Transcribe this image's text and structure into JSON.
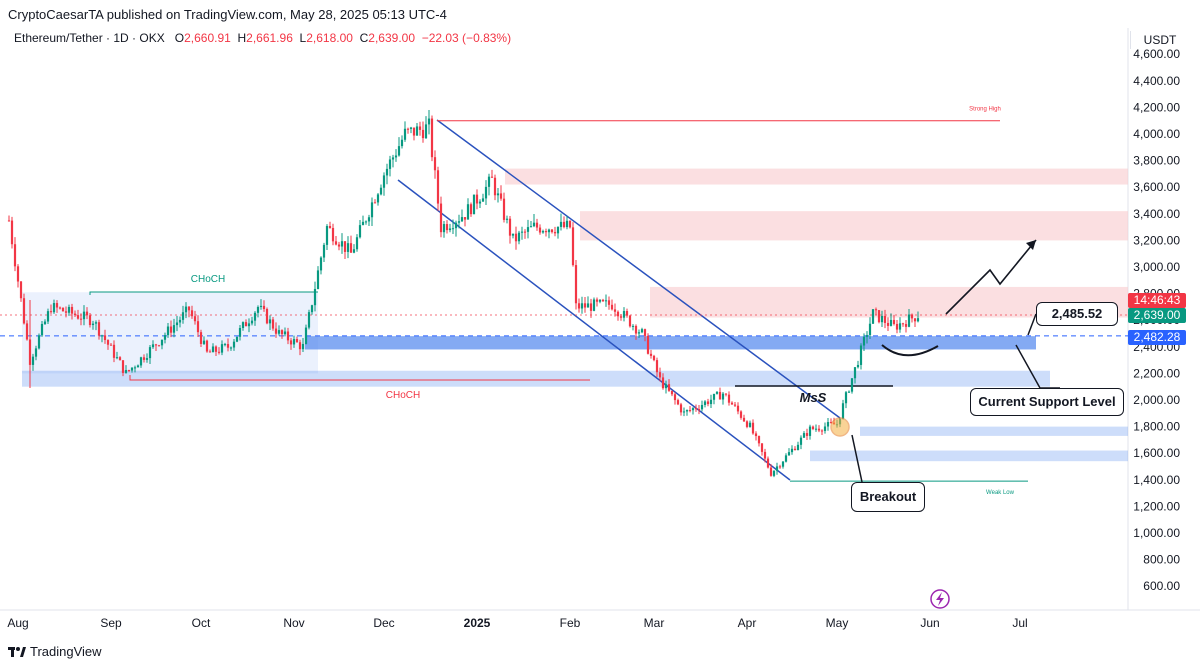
{
  "header": {
    "published": "CryptoCaesarTA published on TradingView.com, May 28, 2025 05:13 UTC-4",
    "symbol": "Ethereum/Tether · 1D · OKX",
    "o_label": "O",
    "o_val": "2,660.91",
    "h_label": "H",
    "h_val": "2,661.96",
    "l_label": "L",
    "l_val": "2,618.00",
    "c_label": "C",
    "c_val": "2,639.00",
    "change": "−22.03 (−0.83%)",
    "currency": "USDT"
  },
  "footer": {
    "brand": "TradingView"
  },
  "price_tags": {
    "countdown": "14:46:43",
    "last": "2,639.00",
    "support": "2,482.28"
  },
  "annotations": {
    "level_bubble": "2,485.52",
    "support_bubble": "Current Support Level",
    "breakout_bubble": "Breakout",
    "mss": "MsS",
    "strong_high": "Strong High",
    "weak_low": "Weak Low",
    "choch_top": "CHoCH",
    "choch_bottom": "CHoCH"
  },
  "colors": {
    "up": "#089981",
    "down": "#f23645",
    "supply_zone": "#f8c9cd",
    "demand_zone": "#5b8def",
    "channel": "#2a52be",
    "accent_blue": "#2962ff"
  },
  "chart_data": {
    "type": "candlestick",
    "title": "Ethereum/Tether · 1D · OKX",
    "ylim": [
      400,
      4800
    ],
    "y_ticks": [
      600,
      800,
      1000,
      1200,
      1400,
      1600,
      1800,
      2000,
      2200,
      2400,
      2600,
      2800,
      3000,
      3200,
      3400,
      3600,
      3800,
      4000,
      4200,
      4400,
      4600
    ],
    "y_tick_labels": [
      "600.00",
      "800.00",
      "1,000.00",
      "1,200.00",
      "1,400.00",
      "1,600.00",
      "1,800.00",
      "2,000.00",
      "2,200.00",
      "2,400.00",
      "2,600.00",
      "2,800.00",
      "3,000.00",
      "3,200.00",
      "3,400.00",
      "3,600.00",
      "3,800.00",
      "4,000.00",
      "4,200.00",
      "4,400.00",
      "4,600.00"
    ],
    "x_labels": [
      "Aug",
      "Sep",
      "Oct",
      "Nov",
      "Dec",
      "2025",
      "Feb",
      "Mar",
      "Apr",
      "May",
      "Jun",
      "Jul"
    ],
    "x_label_dates": [
      "2024-08-01",
      "2024-09-01",
      "2024-10-01",
      "2024-11-01",
      "2024-12-01",
      "2025-01-01",
      "2025-02-01",
      "2025-03-01",
      "2025-04-01",
      "2025-05-01",
      "2025-06-01",
      "2025-07-01"
    ],
    "price_path": [
      [
        "2024-07-29",
        3350
      ],
      [
        "2024-08-05",
        2300
      ],
      [
        "2024-08-12",
        2700
      ],
      [
        "2024-08-19",
        2650
      ],
      [
        "2024-08-26",
        2600
      ],
      [
        "2024-09-06",
        2200
      ],
      [
        "2024-09-15",
        2400
      ],
      [
        "2024-09-27",
        2680
      ],
      [
        "2024-10-03",
        2350
      ],
      [
        "2024-10-10",
        2400
      ],
      [
        "2024-10-20",
        2700
      ],
      [
        "2024-10-27",
        2500
      ],
      [
        "2024-11-04",
        2400
      ],
      [
        "2024-11-12",
        3300
      ],
      [
        "2024-11-20",
        3100
      ],
      [
        "2024-12-01",
        3700
      ],
      [
        "2024-12-08",
        4000
      ],
      [
        "2024-12-16",
        4050
      ],
      [
        "2024-12-20",
        3300
      ],
      [
        "2024-12-28",
        3400
      ],
      [
        "2025-01-06",
        3650
      ],
      [
        "2025-01-13",
        3200
      ],
      [
        "2025-01-20",
        3300
      ],
      [
        "2025-02-01",
        3300
      ],
      [
        "2025-02-03",
        2700
      ],
      [
        "2025-02-15",
        2720
      ],
      [
        "2025-02-25",
        2500
      ],
      [
        "2025-03-03",
        2150
      ],
      [
        "2025-03-11",
        1900
      ],
      [
        "2025-03-24",
        2050
      ],
      [
        "2025-04-02",
        1800
      ],
      [
        "2025-04-09",
        1450
      ],
      [
        "2025-04-15",
        1600
      ],
      [
        "2025-04-22",
        1780
      ],
      [
        "2025-05-01",
        1820
      ],
      [
        "2025-05-08",
        2300
      ],
      [
        "2025-05-13",
        2650
      ],
      [
        "2025-05-20",
        2550
      ],
      [
        "2025-05-28",
        2639
      ]
    ],
    "zones": [
      {
        "name": "supply-1",
        "kind": "supply",
        "from": 3620,
        "to": 3740
      },
      {
        "name": "supply-2",
        "kind": "supply",
        "from": 3200,
        "to": 3420
      },
      {
        "name": "supply-3",
        "kind": "supply",
        "from": 2620,
        "to": 2850
      },
      {
        "name": "demand-1",
        "kind": "demand",
        "from": 2380,
        "to": 2480
      },
      {
        "name": "demand-2",
        "kind": "demand",
        "from": 2100,
        "to": 2220
      },
      {
        "name": "demand-3",
        "kind": "demand",
        "from": 1730,
        "to": 1800
      },
      {
        "name": "demand-4",
        "kind": "demand",
        "from": 1540,
        "to": 1620
      }
    ],
    "levels": {
      "strong_high": 4100,
      "weak_low": 1390,
      "support": 2482.28,
      "last": 2639
    }
  }
}
